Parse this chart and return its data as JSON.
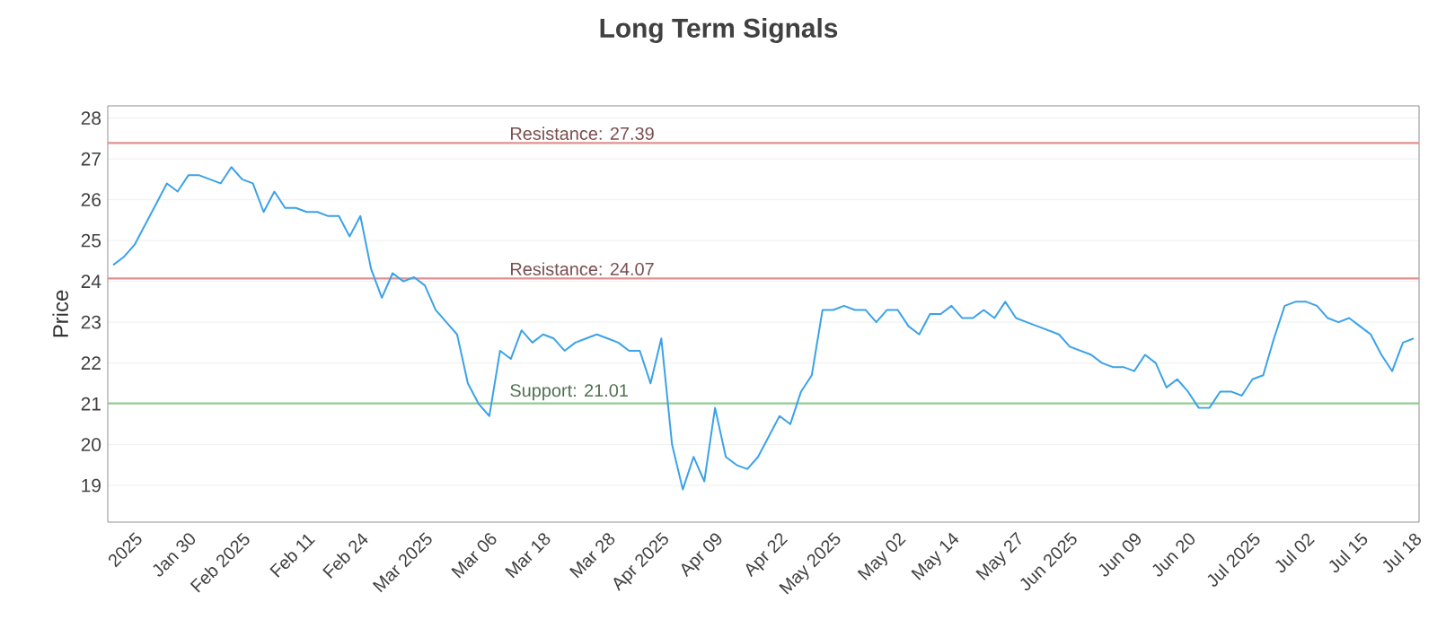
{
  "chart_data": {
    "type": "line",
    "title": "Long Term Signals",
    "ylabel": "Price",
    "categories": [
      null,
      null,
      "2025",
      null,
      null,
      null,
      null,
      "Jan 30",
      null,
      null,
      null,
      null,
      "Feb 2025",
      null,
      null,
      null,
      null,
      null,
      "Feb 11",
      null,
      null,
      null,
      null,
      "Feb 24",
      null,
      null,
      null,
      null,
      null,
      "Mar 2025",
      null,
      null,
      null,
      null,
      null,
      "Mar 06",
      null,
      null,
      null,
      null,
      "Mar 18",
      null,
      null,
      null,
      null,
      null,
      "Mar 28",
      null,
      null,
      null,
      null,
      "Apr 2025",
      null,
      null,
      null,
      null,
      "Apr 09",
      null,
      null,
      null,
      null,
      null,
      "Apr 22",
      null,
      null,
      null,
      null,
      "May 2025",
      null,
      null,
      null,
      null,
      null,
      "May 02",
      null,
      null,
      null,
      null,
      "May 14",
      null,
      null,
      null,
      null,
      null,
      "May 27",
      null,
      null,
      null,
      null,
      "Jun 2025",
      null,
      null,
      null,
      null,
      null,
      "Jun 09",
      null,
      null,
      null,
      null,
      "Jun 20",
      null,
      null,
      null,
      null,
      null,
      "Jul 2025",
      null,
      null,
      null,
      null,
      "Jul 02",
      null,
      null,
      null,
      null,
      "Jul 15",
      null,
      null,
      null,
      null,
      "Jul 18"
    ],
    "values": [
      24.4,
      24.6,
      24.9,
      25.4,
      25.9,
      26.4,
      26.2,
      26.6,
      26.6,
      26.5,
      26.4,
      26.8,
      26.5,
      26.4,
      25.7,
      26.2,
      25.8,
      25.8,
      25.7,
      25.7,
      25.6,
      25.6,
      25.1,
      25.6,
      24.3,
      23.6,
      24.2,
      24.0,
      24.1,
      23.9,
      23.3,
      23.0,
      22.7,
      21.5,
      21.0,
      20.7,
      22.3,
      22.1,
      22.8,
      22.5,
      22.7,
      22.6,
      22.3,
      22.5,
      22.6,
      22.7,
      22.6,
      22.5,
      22.3,
      22.3,
      21.5,
      22.6,
      20.0,
      18.9,
      19.7,
      19.1,
      20.9,
      19.7,
      19.5,
      19.4,
      19.7,
      20.2,
      20.7,
      20.5,
      21.3,
      21.7,
      23.3,
      23.3,
      23.4,
      23.3,
      23.3,
      23.0,
      23.3,
      23.3,
      22.9,
      22.7,
      23.2,
      23.2,
      23.4,
      23.1,
      23.1,
      23.3,
      23.1,
      23.5,
      23.1,
      23.0,
      22.9,
      22.8,
      22.7,
      22.4,
      22.3,
      22.2,
      22.0,
      21.9,
      21.9,
      21.8,
      22.2,
      22.0,
      21.4,
      21.6,
      21.3,
      20.9,
      20.9,
      21.3,
      21.3,
      21.2,
      21.6,
      21.7,
      22.6,
      23.4,
      23.5,
      23.5,
      23.4,
      23.1,
      23.0,
      23.1,
      22.9,
      22.7,
      22.2,
      21.8,
      22.5,
      22.6
    ],
    "color": "#3ba2e8",
    "ylim": [
      18.1,
      28.3
    ],
    "yticks": [
      19,
      20,
      21,
      22,
      23,
      24,
      25,
      26,
      27,
      28
    ],
    "grid": "y",
    "ref_lines": [
      {
        "axis": "y",
        "value": 27.39,
        "label": "Resistance: 27.39",
        "color": "#e09090"
      },
      {
        "axis": "y",
        "value": 24.07,
        "label": "Resistance: 24.07",
        "color": "#e09090"
      },
      {
        "axis": "y",
        "value": 21.01,
        "label": "Support: 21.01",
        "color": "#90cc90"
      }
    ]
  }
}
